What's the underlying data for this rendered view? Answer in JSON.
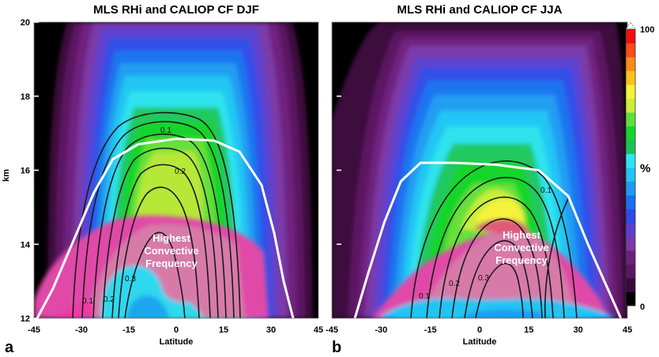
{
  "chart_data": [
    {
      "type": "contour",
      "panel_letter": "a",
      "title": "MLS RHi and CALIOP CF    DJF",
      "xlabel": "Latitude",
      "ylabel": "km",
      "xlim": [
        -45,
        45
      ],
      "ylim": [
        12,
        20
      ],
      "xticks": [
        "-45",
        "-30",
        "-15",
        "0",
        "15",
        "30",
        "45"
      ],
      "yticks": [
        "12",
        "14",
        "16",
        "18",
        "20"
      ],
      "contour_labels": [
        "0.1",
        "0.2",
        "0.3",
        "0.1",
        "0.2"
      ],
      "annotation": [
        "Highest",
        "Convective",
        "Frequency"
      ],
      "tropopause_line": [
        [
          -44,
          12.0
        ],
        [
          -39,
          12.8
        ],
        [
          -33,
          14.0
        ],
        [
          -26,
          15.4
        ],
        [
          -20,
          16.3
        ],
        [
          -12,
          16.7
        ],
        [
          0,
          16.85
        ],
        [
          12,
          16.8
        ],
        [
          20,
          16.5
        ],
        [
          27,
          15.6
        ],
        [
          31,
          14.3
        ],
        [
          34,
          13.0
        ],
        [
          37,
          12.0
        ]
      ]
    },
    {
      "type": "contour",
      "panel_letter": "b",
      "title": "MLS RHi and CALIOP CF    JJA",
      "xlabel": "Latitude",
      "ylabel": "",
      "xlim": [
        -45,
        45
      ],
      "ylim": [
        12,
        20
      ],
      "xticks": [
        "-45",
        "-30",
        "-15",
        "0",
        "15",
        "30",
        "45"
      ],
      "yticks": [],
      "contour_labels": [
        "0.1",
        "0.1",
        "0.2",
        "0.3"
      ],
      "annotation": [
        "Highest",
        "Convective",
        "Frequency"
      ],
      "tropopause_line": [
        [
          -38,
          12.0
        ],
        [
          -34,
          13.2
        ],
        [
          -29,
          14.6
        ],
        [
          -24,
          15.7
        ],
        [
          -18,
          16.2
        ],
        [
          -8,
          16.2
        ],
        [
          5,
          16.15
        ],
        [
          18,
          16.0
        ],
        [
          27,
          15.3
        ],
        [
          33,
          14.0
        ],
        [
          38,
          13.0
        ],
        [
          43,
          12.0
        ]
      ]
    }
  ],
  "colorbar": {
    "unit": "%",
    "tick_labels": [
      "100",
      "0"
    ],
    "colors": [
      "#000000",
      "#3a0a3a",
      "#5a1660",
      "#6e1f7e",
      "#7a3aa8",
      "#5b3fcf",
      "#2f4ae8",
      "#1a6ef0",
      "#1f9af2",
      "#22c4f4",
      "#2ee6f0",
      "#19c25a",
      "#14d62a",
      "#5ee03a",
      "#c8ee3a",
      "#f4f23a",
      "#ffc21a",
      "#ff8a1a",
      "#ff4a1a",
      "#ef1010"
    ]
  }
}
